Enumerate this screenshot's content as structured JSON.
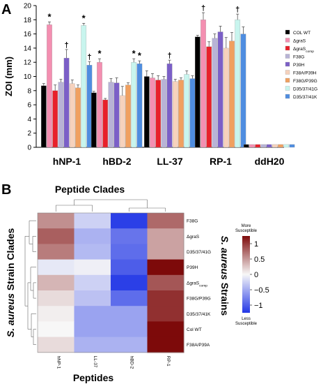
{
  "panels": {
    "a": "A",
    "b": "B"
  },
  "chart_data": [
    {
      "type": "bar",
      "ylabel": "ZOI (mm)",
      "ylim": [
        0,
        20
      ],
      "yticks": [
        0,
        2,
        4,
        6,
        8,
        10,
        12,
        14,
        16,
        18,
        20
      ],
      "categories": [
        "hNP-1",
        "hBD-2",
        "LL-37",
        "RP-1",
        "ddH20"
      ],
      "series": [
        {
          "name": "COL WT",
          "color": "#000000",
          "values": [
            8.7,
            7.7,
            10.0,
            15.6,
            0.4
          ],
          "errors": [
            0.3,
            0.2,
            0.8,
            0.2,
            0.0
          ],
          "marks": [
            "",
            "",
            "",
            "",
            ""
          ]
        },
        {
          "name": "ΔgraS",
          "color": "#f48fb1",
          "values": [
            17.3,
            12.0,
            9.8,
            18.0,
            0.4
          ],
          "errors": [
            0.4,
            0.5,
            0.6,
            1.0,
            0.0
          ],
          "marks": [
            "*",
            "*",
            "",
            "†",
            ""
          ]
        },
        {
          "name": "ΔgraScomp",
          "color": "#e8202a",
          "values": [
            8.0,
            6.7,
            9.5,
            14.2,
            0.4
          ],
          "errors": [
            0.8,
            0.2,
            0.6,
            0.7,
            0.0
          ],
          "marks": [
            "",
            "",
            "",
            "",
            ""
          ]
        },
        {
          "name": "F38G",
          "color": "#b8b3d6",
          "values": [
            9.2,
            9.2,
            9.6,
            15.4,
            0.4
          ],
          "errors": [
            0.4,
            0.5,
            0.4,
            0.6,
            0.0
          ],
          "marks": [
            "",
            "",
            "",
            "",
            ""
          ]
        },
        {
          "name": "P39H",
          "color": "#7b5fc7",
          "values": [
            12.6,
            9.1,
            11.8,
            16.3,
            0.4
          ],
          "errors": [
            1.2,
            0.7,
            0.5,
            0.8,
            0.0
          ],
          "marks": [
            "†",
            "",
            "†",
            "",
            ""
          ]
        },
        {
          "name": "F38A/P39H",
          "color": "#f6d2bd",
          "values": [
            9.0,
            7.3,
            9.3,
            14.0,
            0.4
          ],
          "errors": [
            0.5,
            1.3,
            0.3,
            1.5,
            0.0
          ],
          "marks": [
            "",
            "",
            "",
            "",
            ""
          ]
        },
        {
          "name": "F38G/P39G",
          "color": "#f0a060",
          "values": [
            8.4,
            8.8,
            9.5,
            15.0,
            0.4
          ],
          "errors": [
            0.4,
            0.3,
            0.3,
            1.2,
            0.0
          ],
          "marks": [
            "",
            "",
            "",
            "",
            ""
          ]
        },
        {
          "name": "D35/37/41G",
          "color": "#c8f5ee",
          "values": [
            17.2,
            12.0,
            10.3,
            18.0,
            0.4
          ],
          "errors": [
            0.3,
            0.5,
            0.5,
            0.8,
            0.0
          ],
          "marks": [
            "*",
            "*",
            "",
            "†",
            ""
          ]
        },
        {
          "name": "D35/37/41K",
          "color": "#4f8de0",
          "values": [
            11.6,
            11.8,
            9.7,
            16.0,
            0.4
          ],
          "errors": [
            0.5,
            0.4,
            0.4,
            1.0,
            0.0
          ],
          "marks": [
            "†",
            "*",
            "",
            "",
            ""
          ]
        }
      ]
    },
    {
      "type": "heatmap",
      "title": "Peptide Clades",
      "xlabel": "Peptides",
      "ylabel_left": "S. aureus Strain Clades",
      "ylabel_right": "S. aureus Strains",
      "columns": [
        "hNP-1",
        "LL-37",
        "hBD-2",
        "RP-1"
      ],
      "rows": [
        "F38G",
        "ΔgraS",
        "D35/37/41G",
        "P39H",
        "ΔgraScomp",
        "F38G/P39G",
        "D35/37/41K",
        "Col WT",
        "F38A/P39A"
      ],
      "values": [
        [
          0.55,
          -0.25,
          -1.2,
          0.75
        ],
        [
          0.8,
          -0.45,
          -0.85,
          0.45
        ],
        [
          0.65,
          -0.4,
          -0.9,
          0.45
        ],
        [
          -0.1,
          -0.05,
          -1.0,
          1.25
        ],
        [
          0.35,
          -0.25,
          -1.2,
          0.85
        ],
        [
          0.15,
          -0.35,
          -0.9,
          1.05
        ],
        [
          0.05,
          -0.55,
          -0.55,
          1.05
        ],
        [
          0.0,
          -0.55,
          -0.55,
          1.25
        ],
        [
          0.15,
          -0.45,
          -0.45,
          1.25
        ]
      ],
      "colorbar": {
        "ticks": [
          1,
          0.5,
          0,
          -0.5,
          -1
        ],
        "tick_labels": [
          "1",
          "0.5",
          "0",
          "−0.5",
          "−1"
        ],
        "range": [
          -1.25,
          1.25
        ],
        "top_label": [
          "More",
          "Susceptible"
        ],
        "bottom_label": [
          "Less",
          "Susceptible"
        ]
      }
    }
  ]
}
